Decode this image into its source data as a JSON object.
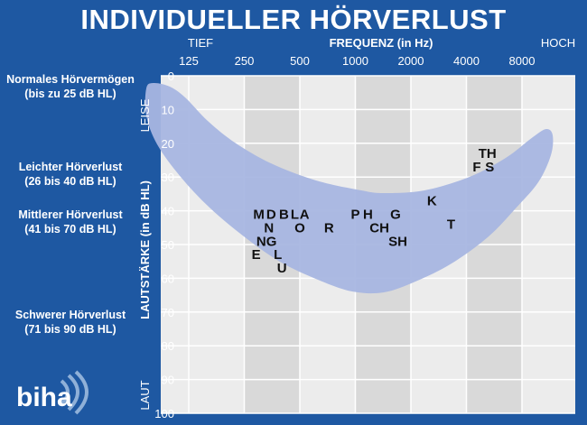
{
  "title": "INDIVIDUELLER HÖRVERLUST",
  "categories": [
    {
      "name": "Normales Hörvermögen",
      "range": "(bis zu 25 dB HL)"
    },
    {
      "name": "Leichter Hörverlust",
      "range": "(26 bis 40 dB HL)"
    },
    {
      "name": "Mittlerer Hörverlust",
      "range": "(41 bis 70 dB HL)"
    },
    {
      "name": "Schwerer Hörverlust",
      "range": "(71 bis 90 dB HL)"
    }
  ],
  "logo_text": "biha",
  "colors": {
    "background": "#1e58a2",
    "plot": "#ececec",
    "plot_band": "#d9d9d9",
    "banana": "#a8b6e2",
    "text": "#ffffff",
    "letters": "#111111"
  },
  "chart_data": {
    "type": "scatter",
    "title": "",
    "xlabel": "FREQUENZ (in Hz)",
    "x_left_label": "TIEF",
    "x_right_label": "HOCH",
    "ylabel": "LAUTSTÄRKE (in dB HL)",
    "y_top_label": "LEISE",
    "y_bottom_label": "LAUT",
    "x_ticks": [
      "125",
      "250",
      "500",
      "1000",
      "2000",
      "4000",
      "8000"
    ],
    "y_ticks": [
      "0",
      "10",
      "20",
      "30",
      "40",
      "50",
      "60",
      "70",
      "80",
      "90",
      "100"
    ],
    "ylim": [
      0,
      100
    ],
    "y_inverted": true,
    "x_scale": "log",
    "grid": true,
    "points": [
      {
        "label": "M",
        "freq": 300,
        "db": 41
      },
      {
        "label": "D",
        "freq": 350,
        "db": 41
      },
      {
        "label": "B",
        "freq": 410,
        "db": 41
      },
      {
        "label": "L",
        "freq": 470,
        "db": 41
      },
      {
        "label": "A",
        "freq": 530,
        "db": 41
      },
      {
        "label": "N",
        "freq": 340,
        "db": 45
      },
      {
        "label": "O",
        "freq": 500,
        "db": 45
      },
      {
        "label": "R",
        "freq": 720,
        "db": 45
      },
      {
        "label": "P",
        "freq": 1000,
        "db": 41
      },
      {
        "label": "H",
        "freq": 1170,
        "db": 41
      },
      {
        "label": "G",
        "freq": 1650,
        "db": 41
      },
      {
        "label": "CH",
        "freq": 1350,
        "db": 45
      },
      {
        "label": "NG",
        "freq": 330,
        "db": 49
      },
      {
        "label": "E",
        "freq": 290,
        "db": 53
      },
      {
        "label": "L",
        "freq": 380,
        "db": 53
      },
      {
        "label": "U",
        "freq": 400,
        "db": 57
      },
      {
        "label": "SH",
        "freq": 1700,
        "db": 49
      },
      {
        "label": "K",
        "freq": 2600,
        "db": 37
      },
      {
        "label": "T",
        "freq": 3300,
        "db": 44
      },
      {
        "label": "TH",
        "freq": 5200,
        "db": 23
      },
      {
        "label": "F",
        "freq": 4550,
        "db": 27
      },
      {
        "label": "S",
        "freq": 5350,
        "db": 27
      }
    ]
  }
}
